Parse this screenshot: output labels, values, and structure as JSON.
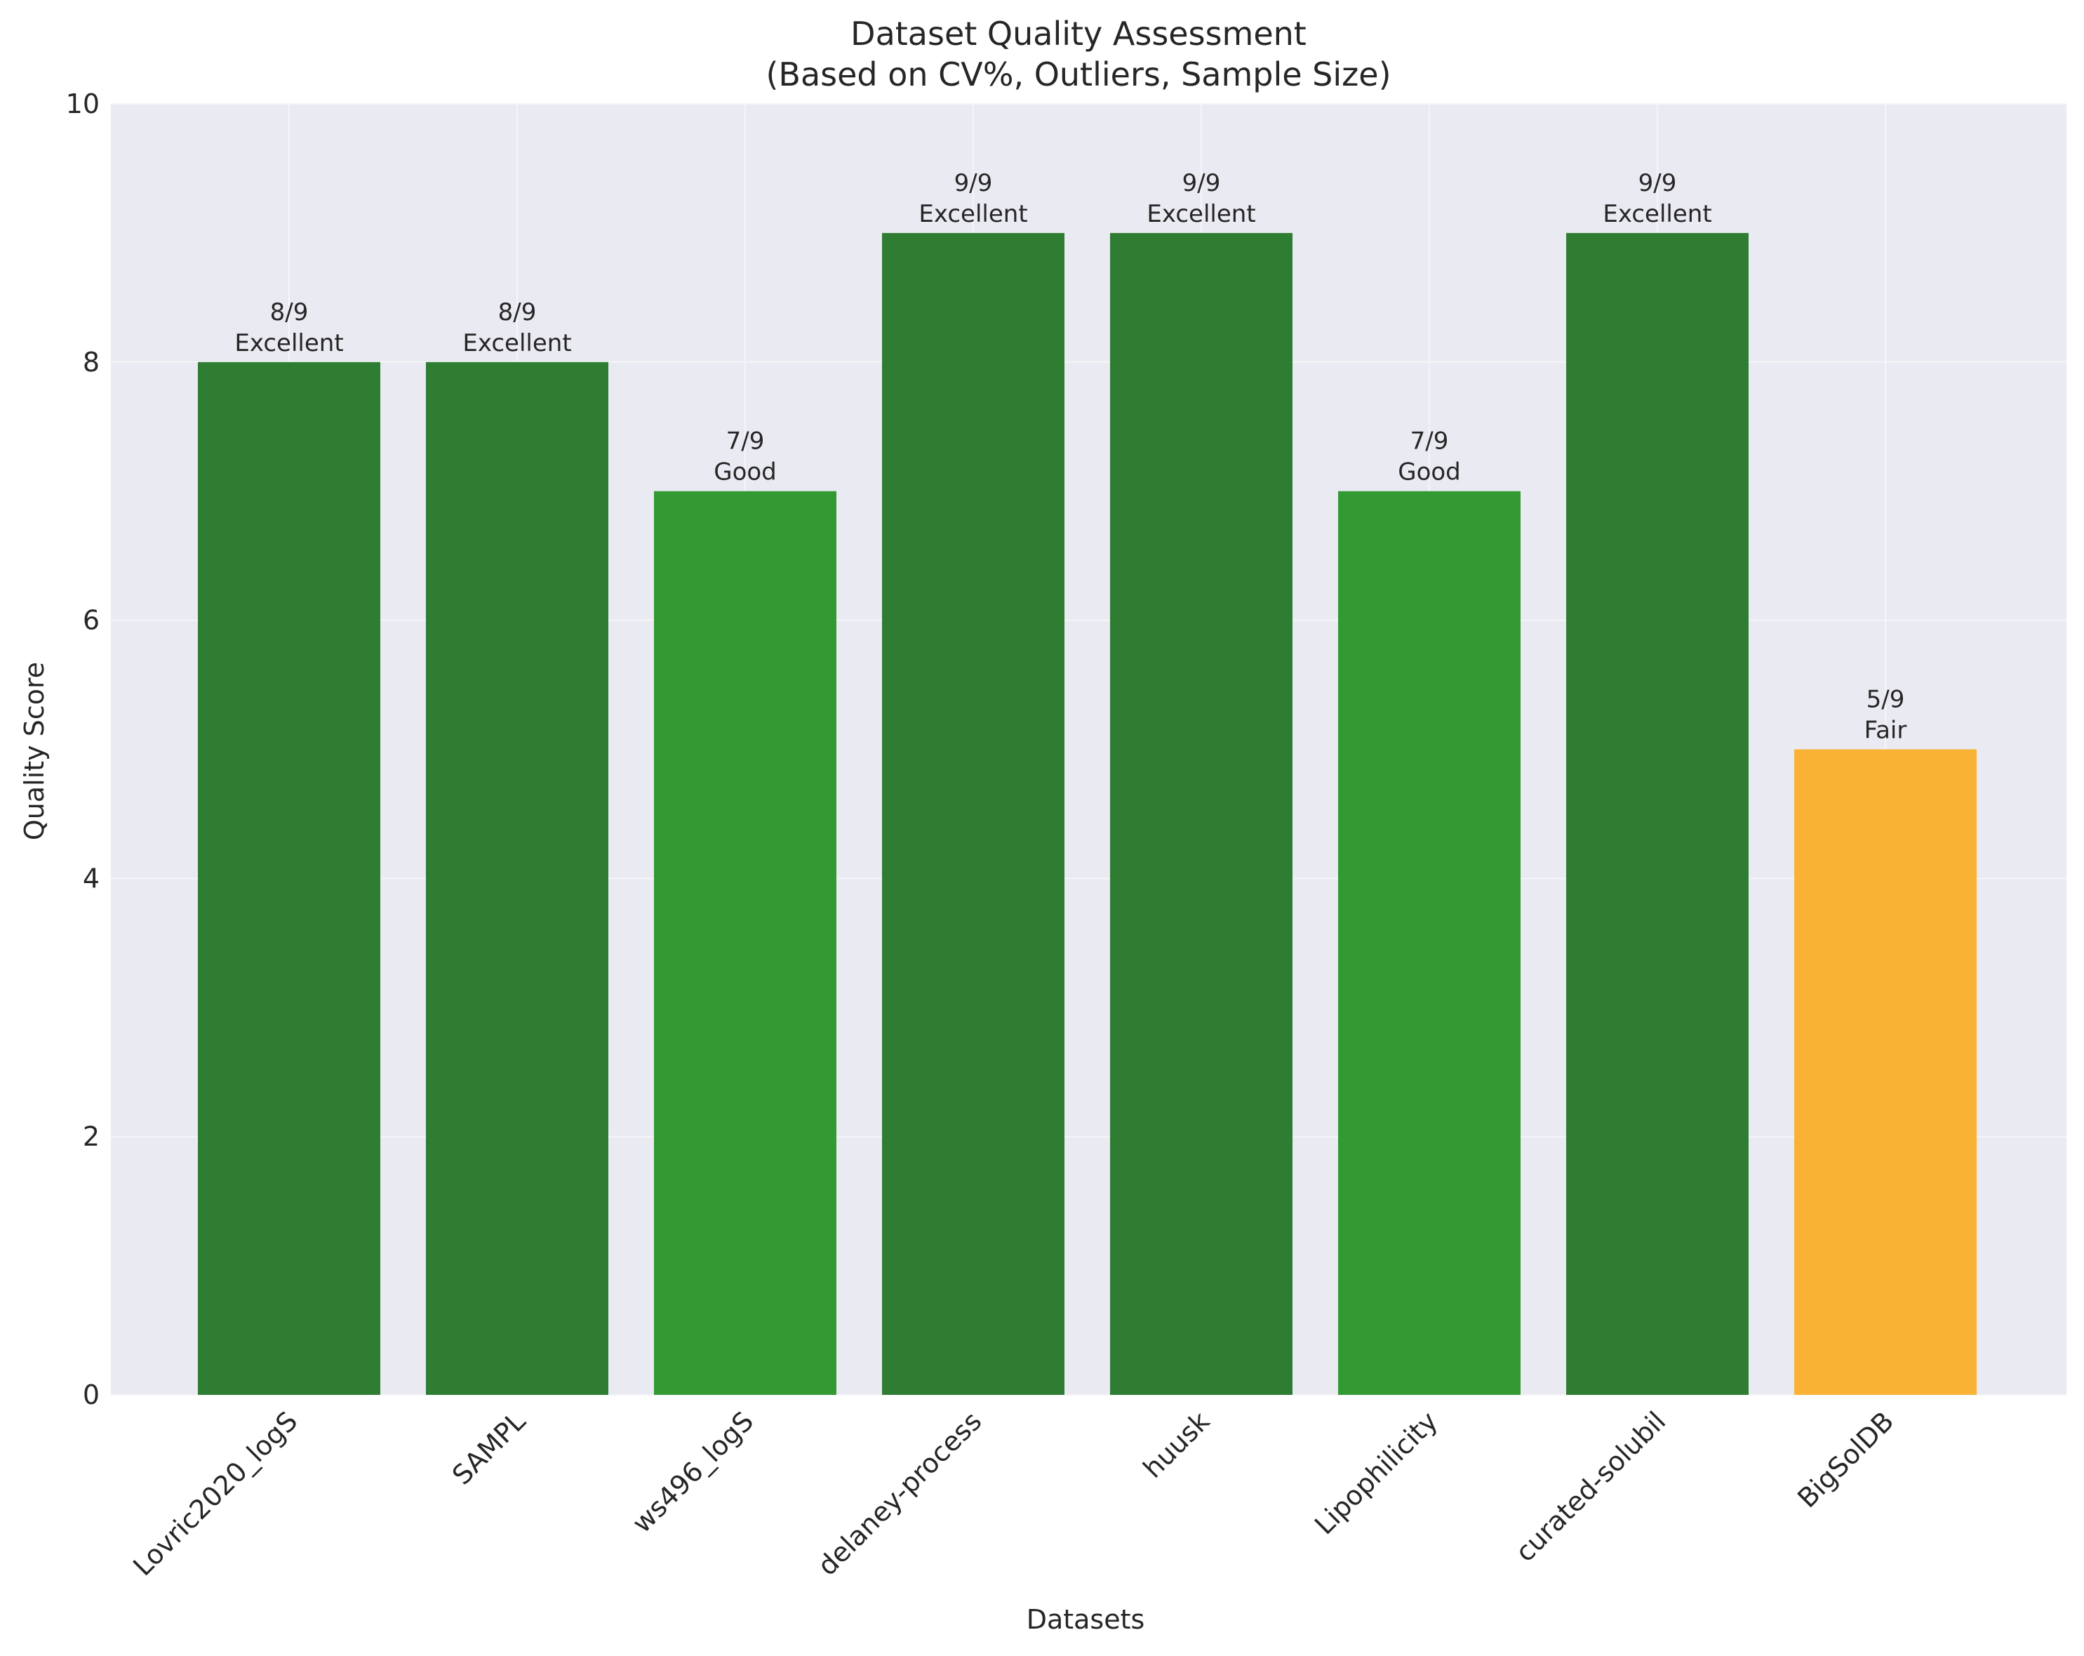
{
  "chart_data": {
    "type": "bar",
    "title": [
      "Dataset Quality Assessment",
      "(Based on CV%, Outliers, Sample Size)"
    ],
    "xlabel": "Datasets",
    "ylabel": "Quality Score",
    "ylim": [
      0,
      10
    ],
    "yticks": [
      "0",
      "2",
      "4",
      "6",
      "8",
      "10"
    ],
    "grid": true,
    "categories": [
      "Lovric2020_logS",
      "SAMPL",
      "ws496_logS",
      "delaney-process",
      "huusk",
      "Lipophilicity",
      "curated-solubil",
      "BigSolDB"
    ],
    "values": [
      8,
      8,
      7,
      9,
      9,
      7,
      9,
      5
    ],
    "score_labels": [
      "8/9",
      "8/9",
      "7/9",
      "9/9",
      "9/9",
      "7/9",
      "9/9",
      "5/9"
    ],
    "ratings": [
      "Excellent",
      "Excellent",
      "Good",
      "Excellent",
      "Excellent",
      "Good",
      "Excellent",
      "Fair"
    ],
    "rating_colors": {
      "Excellent": "#2e7d32",
      "Good": "#339933",
      "Fair": "#f9b233"
    },
    "colors": {
      "plot_background": "#eaeaf2",
      "grid": "#f5f5f8",
      "text": "#262626"
    }
  }
}
